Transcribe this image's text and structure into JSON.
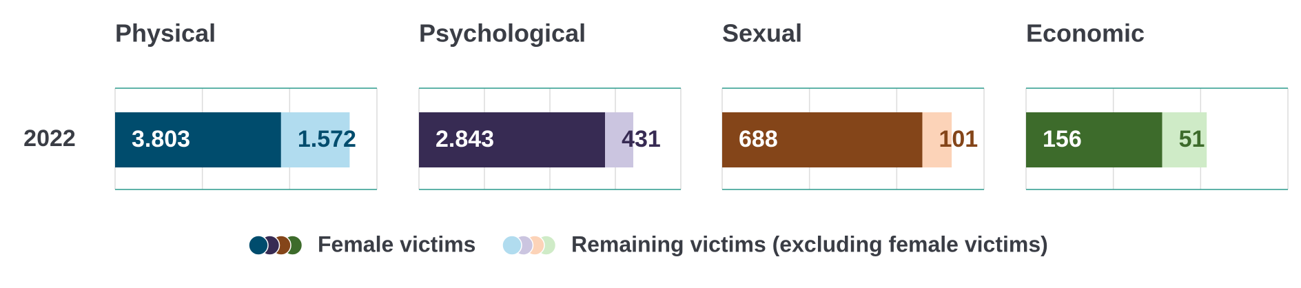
{
  "chart_data": [
    {
      "type": "bar",
      "orientation": "horizontal",
      "stacked": true,
      "title": "Physical",
      "categories": [
        "2022"
      ],
      "series": [
        {
          "name": "Female victims",
          "color": "#004c6d",
          "values": [
            3803
          ],
          "value_labels": [
            "3.803"
          ]
        },
        {
          "name": "Remaining victims (excluding female victims)",
          "color": "#b1dcef",
          "values": [
            1572
          ],
          "value_labels": [
            "1.572"
          ]
        }
      ],
      "xlim": [
        0,
        6000
      ],
      "xticks": [
        0,
        2000,
        4000,
        6000
      ],
      "grid": true,
      "legend": "bottom"
    },
    {
      "type": "bar",
      "orientation": "horizontal",
      "stacked": true,
      "title": "Psychological",
      "categories": [
        "2022"
      ],
      "series": [
        {
          "name": "Female victims",
          "color": "#372b53",
          "values": [
            2843
          ],
          "value_labels": [
            "2.843"
          ]
        },
        {
          "name": "Remaining victims (excluding female victims)",
          "color": "#cbc5e0",
          "values": [
            431
          ]
        }
      ],
      "xlim": [
        0,
        4000
      ],
      "xticks": [
        0,
        1000,
        2000,
        3000,
        4000
      ],
      "grid": true
    },
    {
      "type": "bar",
      "orientation": "horizontal",
      "stacked": true,
      "title": "Sexual",
      "categories": [
        "2022"
      ],
      "series": [
        {
          "name": "Female victims",
          "color": "#844519",
          "values": [
            688
          ]
        },
        {
          "name": "Remaining victims (excluding female victims)",
          "color": "#fcd3b8",
          "values": [
            101
          ]
        }
      ],
      "xlim": [
        0,
        900
      ],
      "xticks": [
        0,
        300,
        600,
        900
      ],
      "grid": true
    },
    {
      "type": "bar",
      "orientation": "horizontal",
      "stacked": true,
      "title": "Economic",
      "categories": [
        "2022"
      ],
      "series": [
        {
          "name": "Female victims",
          "color": "#3d6b2b",
          "values": [
            156
          ]
        },
        {
          "name": "Remaining victims (excluding female victims)",
          "color": "#cfebc7",
          "values": [
            51
          ]
        }
      ],
      "xlim": [
        0,
        300
      ],
      "xticks": [
        0,
        100,
        200,
        300
      ],
      "grid": true
    }
  ]
}
